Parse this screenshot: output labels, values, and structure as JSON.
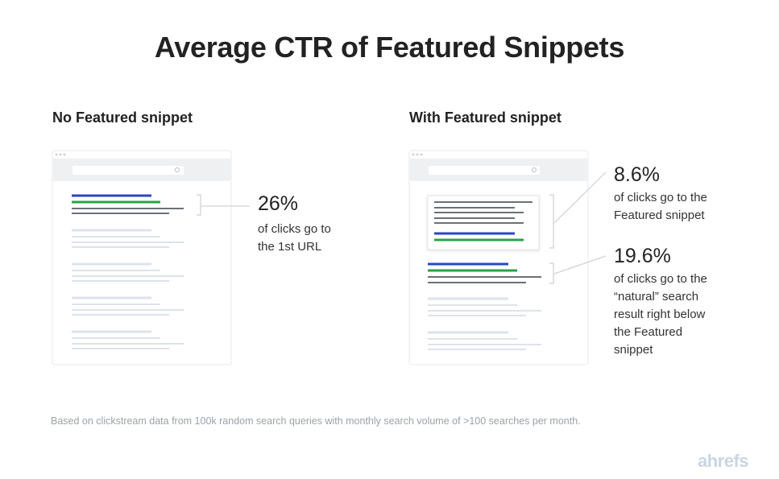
{
  "title": "Average CTR of Featured Snippets",
  "left": {
    "heading": "No Featured snippet",
    "stat": "26%",
    "desc_lines": [
      "of clicks go to",
      "the 1st URL"
    ]
  },
  "right": {
    "heading": "With Featured snippet",
    "snippet_stat": "8.6%",
    "snippet_desc_lines": [
      "of clicks go to the",
      "Featured snippet"
    ],
    "natural_stat": "19.6%",
    "natural_desc_lines": [
      "of clicks go to the",
      "“natural” search",
      "result right below",
      "the Featured",
      "snippet"
    ]
  },
  "footnote": "Based on clickstream data from 100k random search queries with monthly search volume of >100 searches per month.",
  "logo": "ahrefs",
  "colors": {
    "blue": "#2b45c4",
    "green": "#27a347",
    "dark_line": "#6b7078",
    "light_line": "#dde3ec",
    "browser_header": "#eef0f2"
  }
}
